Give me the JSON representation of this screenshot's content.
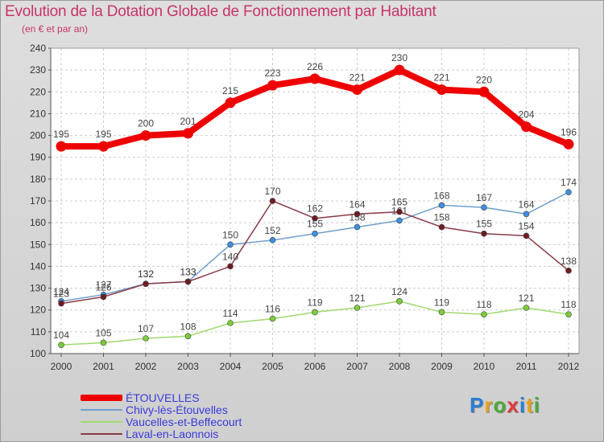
{
  "header": {
    "title": "Evolution de la Dotation Globale de Fonctionnement par Habitant",
    "subtitle": "(en € et par an)"
  },
  "logo": {
    "text": "Proxiti",
    "letter_colors": [
      "#2a7fd4",
      "#e8a020",
      "#4aaa3a",
      "#e03a3a",
      "#2a7fd4",
      "#e8a020",
      "#4aaa3a"
    ]
  },
  "chart_data": {
    "type": "line",
    "x": [
      "2000",
      "2001",
      "2002",
      "2003",
      "2004",
      "2005",
      "2006",
      "2007",
      "2008",
      "2009",
      "2010",
      "2011",
      "2012"
    ],
    "ylim": [
      100,
      240
    ],
    "yticks": [
      100,
      110,
      120,
      130,
      140,
      150,
      160,
      170,
      180,
      190,
      200,
      210,
      220,
      230,
      240
    ],
    "grid": true,
    "legend_position": "bottom-left",
    "series": [
      {
        "name": "ÉTOUVELLES",
        "color": "#ee0000",
        "marker": "#ee0000",
        "bold": true,
        "values": [
          195,
          195,
          200,
          201,
          215,
          223,
          226,
          221,
          230,
          221,
          220,
          204,
          196
        ],
        "labels": [
          "195",
          "195",
          "200",
          "201",
          "215",
          "223",
          "226",
          "221",
          "230",
          "221",
          "220",
          "204",
          "196"
        ]
      },
      {
        "name": "Chivy-lès-Étouvelles",
        "color": "#6f9fcf",
        "marker": "#3f8fdf",
        "bold": false,
        "values": [
          124,
          127,
          132,
          133,
          150,
          152,
          155,
          158,
          161,
          168,
          167,
          164,
          174
        ],
        "labels": [
          "124",
          "127",
          "132",
          "133",
          "150",
          "152",
          "155",
          "158",
          "161",
          "168",
          "167",
          "164",
          "174"
        ]
      },
      {
        "name": "Vaucelles-et-Beffecourt",
        "color": "#9fd96f",
        "marker": "#7ccc3c",
        "bold": false,
        "values": [
          104,
          105,
          107,
          108,
          114,
          116,
          119,
          121,
          124,
          119,
          118,
          121,
          118
        ],
        "labels": [
          "104",
          "105",
          "107",
          "108",
          "114",
          "116",
          "119",
          "121",
          "124",
          "119",
          "118",
          "121",
          "118"
        ]
      },
      {
        "name": "Laval-en-Laonnois",
        "color": "#8a3a44",
        "marker": "#6e1c22",
        "bold": false,
        "values": [
          123,
          126,
          132,
          133,
          140,
          170,
          162,
          164,
          165,
          158,
          155,
          154,
          138
        ],
        "labels": [
          "123",
          "126",
          "132",
          "133",
          "140",
          "170",
          "162",
          "164",
          "165",
          "158",
          "155",
          "154",
          "138"
        ]
      }
    ]
  }
}
